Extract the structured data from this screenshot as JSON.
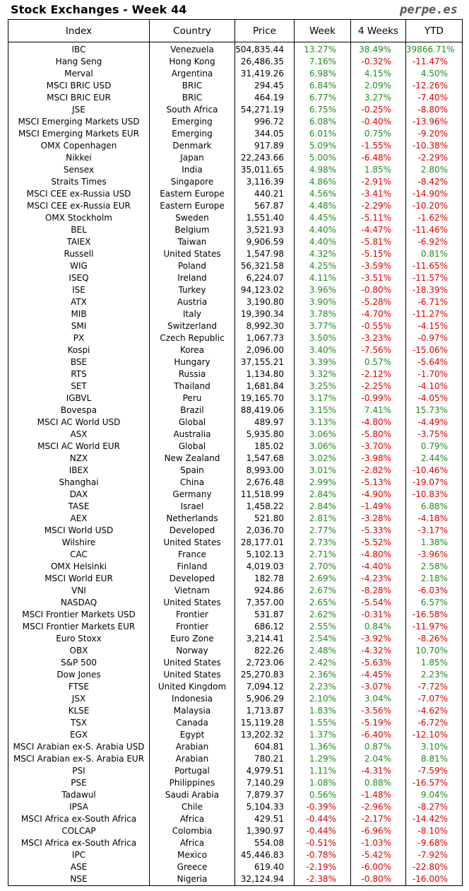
{
  "header": {
    "title": "Stock Exchanges - Week 44",
    "brand": "perpe.es"
  },
  "columns": [
    "Index",
    "Country",
    "Price",
    "Week",
    "4 Weeks",
    "YTD"
  ],
  "colors": {
    "positive": "#228B22",
    "negative": "#e00000"
  },
  "rows": [
    [
      "IBC",
      "Venezuela",
      "504,835.44",
      "13.27%",
      "38.49%",
      "39866.71%"
    ],
    [
      "Hang Seng",
      "Hong Kong",
      "26,486.35",
      "7.16%",
      "-0.32%",
      "-11.47%"
    ],
    [
      "Merval",
      "Argentina",
      "31,419.26",
      "6.98%",
      "4.15%",
      "4.50%"
    ],
    [
      "MSCI BRIC USD",
      "BRIC",
      "294.45",
      "6.84%",
      "2.09%",
      "-12.26%"
    ],
    [
      "MSCI BRIC EUR",
      "BRIC",
      "464.19",
      "6.77%",
      "3.27%",
      "-7.40%"
    ],
    [
      "JSE",
      "South Africa",
      "54,271.19",
      "6.75%",
      "-0.25%",
      "-8.80%"
    ],
    [
      "MSCI Emerging Markets USD",
      "Emerging",
      "996.72",
      "6.08%",
      "-0.40%",
      "-13.96%"
    ],
    [
      "MSCI Emerging Markets EUR",
      "Emerging",
      "344.05",
      "6.01%",
      "0.75%",
      "-9.20%"
    ],
    [
      "OMX Copenhagen",
      "Denmark",
      "917.89",
      "5.09%",
      "-1.55%",
      "-10.38%"
    ],
    [
      "Nikkei",
      "Japan",
      "22,243.66",
      "5.00%",
      "-6.48%",
      "-2.29%"
    ],
    [
      "Sensex",
      "India",
      "35,011.65",
      "4.98%",
      "1.85%",
      "2.80%"
    ],
    [
      "Straits Times",
      "Singapore",
      "3,116.39",
      "4.86%",
      "-2.91%",
      "-8.42%"
    ],
    [
      "MSCI CEE ex-Russia USD",
      "Eastern Europe",
      "440.21",
      "4.56%",
      "-3.41%",
      "-14.90%"
    ],
    [
      "MSCI CEE ex-Russia EUR",
      "Eastern Europe",
      "567.87",
      "4.48%",
      "-2.29%",
      "-10.20%"
    ],
    [
      "OMX Stockholm",
      "Sweden",
      "1,551.40",
      "4.45%",
      "-5.11%",
      "-1.62%"
    ],
    [
      "BEL",
      "Belgium",
      "3,521.93",
      "4.40%",
      "-4.47%",
      "-11.46%"
    ],
    [
      "TAIEX",
      "Taiwan",
      "9,906.59",
      "4.40%",
      "-5.81%",
      "-6.92%"
    ],
    [
      "Russell",
      "United States",
      "1,547.98",
      "4.32%",
      "-5.15%",
      "0.81%"
    ],
    [
      "WIG",
      "Poland",
      "56,321.58",
      "4.25%",
      "-3.59%",
      "-11.65%"
    ],
    [
      "ISEQ",
      "Ireland",
      "6,224.07",
      "4.11%",
      "-3.51%",
      "-11.57%"
    ],
    [
      "ISE",
      "Turkey",
      "94,123.02",
      "3.96%",
      "-0.80%",
      "-18.39%"
    ],
    [
      "ATX",
      "Austria",
      "3,190.80",
      "3.90%",
      "-5.28%",
      "-6.71%"
    ],
    [
      "MIB",
      "Italy",
      "19,390.34",
      "3.78%",
      "-4.70%",
      "-11.27%"
    ],
    [
      "SMI",
      "Switzerland",
      "8,992.30",
      "3.77%",
      "-0.55%",
      "-4.15%"
    ],
    [
      "PX",
      "Czech Republic",
      "1,067.73",
      "3.50%",
      "-3.23%",
      "-0.97%"
    ],
    [
      "Kospi",
      "Korea",
      "2,096.00",
      "3.40%",
      "-7.56%",
      "-15.06%"
    ],
    [
      "BSE",
      "Hungary",
      "37,155.21",
      "3.39%",
      "0.57%",
      "-5.64%"
    ],
    [
      "RTS",
      "Russia",
      "1,134.80",
      "3.32%",
      "-2.12%",
      "-1.70%"
    ],
    [
      "SET",
      "Thailand",
      "1,681.84",
      "3.25%",
      "-2.25%",
      "-4.10%"
    ],
    [
      "IGBVL",
      "Peru",
      "19,165.70",
      "3.17%",
      "-0.99%",
      "-4.05%"
    ],
    [
      "Bovespa",
      "Brazil",
      "88,419.06",
      "3.15%",
      "7.41%",
      "15.73%"
    ],
    [
      "MSCI AC World USD",
      "Global",
      "489.97",
      "3.13%",
      "-4.80%",
      "-4.49%"
    ],
    [
      "ASX",
      "Australia",
      "5,935.80",
      "3.06%",
      "-5.80%",
      "-3.75%"
    ],
    [
      "MSCI AC World EUR",
      "Global",
      "185.02",
      "3.06%",
      "-3.70%",
      "0.79%"
    ],
    [
      "NZX",
      "New Zealand",
      "1,547.68",
      "3.02%",
      "-3.98%",
      "2.44%"
    ],
    [
      "IBEX",
      "Spain",
      "8,993.00",
      "3.01%",
      "-2.82%",
      "-10.46%"
    ],
    [
      "Shanghai",
      "China",
      "2,676.48",
      "2.99%",
      "-5.13%",
      "-19.07%"
    ],
    [
      "DAX",
      "Germany",
      "11,518.99",
      "2.84%",
      "-4.90%",
      "-10.83%"
    ],
    [
      "TASE",
      "Israel",
      "1,458.22",
      "2.84%",
      "-1.49%",
      "6.88%"
    ],
    [
      "AEX",
      "Netherlands",
      "521.80",
      "2.81%",
      "-3.28%",
      "-4.18%"
    ],
    [
      "MSCI World USD",
      "Developed",
      "2,036.70",
      "2.77%",
      "-5.33%",
      "-3.17%"
    ],
    [
      "Wilshire",
      "United States",
      "28,177.01",
      "2.73%",
      "-5.52%",
      "1.38%"
    ],
    [
      "CAC",
      "France",
      "5,102.13",
      "2.71%",
      "-4.80%",
      "-3.96%"
    ],
    [
      "OMX Helsinki",
      "Finland",
      "4,019.03",
      "2.70%",
      "-4.40%",
      "2.58%"
    ],
    [
      "MSCI World EUR",
      "Developed",
      "182.78",
      "2.69%",
      "-4.23%",
      "2.18%"
    ],
    [
      "VNI",
      "Vietnam",
      "924.86",
      "2.67%",
      "-8.28%",
      "-6.03%"
    ],
    [
      "NASDAQ",
      "United States",
      "7,357.00",
      "2.65%",
      "-5.54%",
      "6.57%"
    ],
    [
      "MSCI Frontier Markets USD",
      "Frontier",
      "531.87",
      "2.62%",
      "-0.31%",
      "-16.58%"
    ],
    [
      "MSCI Frontier Markets EUR",
      "Frontier",
      "686.12",
      "2.55%",
      "0.84%",
      "-11.97%"
    ],
    [
      "Euro Stoxx",
      "Euro Zone",
      "3,214.41",
      "2.54%",
      "-3.92%",
      "-8.26%"
    ],
    [
      "OBX",
      "Norway",
      "822.26",
      "2.48%",
      "-4.32%",
      "10.70%"
    ],
    [
      "S&P 500",
      "United States",
      "2,723.06",
      "2.42%",
      "-5.63%",
      "1.85%"
    ],
    [
      "Dow Jones",
      "United States",
      "25,270.83",
      "2.36%",
      "-4.45%",
      "2.23%"
    ],
    [
      "FTSE",
      "United Kingdom",
      "7,094.12",
      "2.23%",
      "-3.07%",
      "-7.72%"
    ],
    [
      "JSX",
      "Indonesia",
      "5,906.29",
      "2.10%",
      "3.04%",
      "-7.07%"
    ],
    [
      "KLSE",
      "Malaysia",
      "1,713.87",
      "1.83%",
      "-3.56%",
      "-4.62%"
    ],
    [
      "TSX",
      "Canada",
      "15,119.28",
      "1.55%",
      "-5.19%",
      "-6.72%"
    ],
    [
      "EGX",
      "Egypt",
      "13,202.32",
      "1.37%",
      "-6.40%",
      "-12.10%"
    ],
    [
      "MSCI Arabian ex-S. Arabia USD",
      "Arabian",
      "604.81",
      "1.36%",
      "0.87%",
      "3.10%"
    ],
    [
      "MSCI Arabian ex-S. Arabia EUR",
      "Arabian",
      "780.21",
      "1.29%",
      "2.04%",
      "8.81%"
    ],
    [
      "PSI",
      "Portugal",
      "4,979.51",
      "1.11%",
      "-4.31%",
      "-7.59%"
    ],
    [
      "PSE",
      "Philippines",
      "7,140.29",
      "1.08%",
      "0.88%",
      "-16.57%"
    ],
    [
      "Tadawul",
      "Saudi Arabia",
      "7,879.37",
      "0.56%",
      "-1.48%",
      "9.04%"
    ],
    [
      "IPSA",
      "Chile",
      "5,104.33",
      "-0.39%",
      "-2.96%",
      "-8.27%"
    ],
    [
      "MSCI Africa ex-South Africa",
      "Africa",
      "429.51",
      "-0.44%",
      "-2.17%",
      "-14.42%"
    ],
    [
      "COLCAP",
      "Colombia",
      "1,390.97",
      "-0.44%",
      "-6.96%",
      "-8.10%"
    ],
    [
      "MSCI Africa ex-South Africa",
      "Africa",
      "554.08",
      "-0.51%",
      "-1.03%",
      "-9.68%"
    ],
    [
      "IPC",
      "Mexico",
      "45,446.83",
      "-0.78%",
      "-5.42%",
      "-7.92%"
    ],
    [
      "ASE",
      "Greece",
      "619.40",
      "-2.19%",
      "-6.00%",
      "-22.80%"
    ],
    [
      "NSE",
      "Nigeria",
      "32,124.94",
      "-2.38%",
      "-0.80%",
      "-16.00%"
    ]
  ]
}
